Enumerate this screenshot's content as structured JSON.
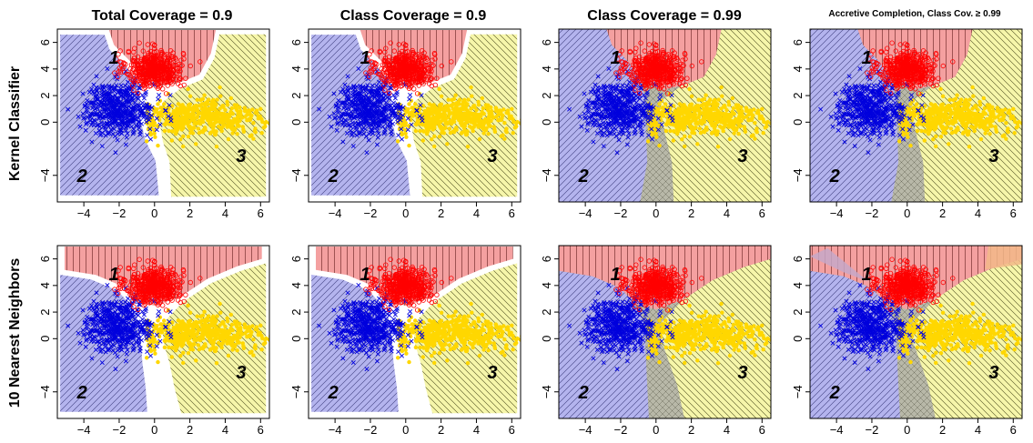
{
  "figure": {
    "column_titles": [
      "Total Coverage = 0.9",
      "Class Coverage = 0.9",
      "Class Coverage = 0.99",
      "Accretive Completion, Class Cov. ≥ 0.99"
    ],
    "row_labels": [
      "Kernel Classifier",
      "10 Nearest Neighbors"
    ]
  },
  "chart_data": {
    "type": "scatter",
    "layout": "2 rows x 4 columns of panels",
    "xlim": [
      -5.5,
      6.5
    ],
    "ylim": [
      -6,
      7
    ],
    "x_ticks": [
      -4,
      -2,
      0,
      2,
      4,
      6
    ],
    "y_ticks": [
      -4,
      0,
      2,
      4,
      6
    ],
    "x_tick_labels": [
      "−4",
      "−2",
      "0",
      "2",
      "4",
      "6"
    ],
    "y_tick_labels": [
      "−4",
      "0",
      "2",
      "4",
      "6"
    ],
    "grid": false,
    "legend": "none",
    "region_labels": [
      "1",
      "2",
      "3"
    ],
    "series": [
      {
        "label": "1",
        "marker": "open circle",
        "color": "#ff0000",
        "center": [
          0,
          4
        ],
        "x_spread": 0.8,
        "y_spread": 0.7,
        "n": 500
      },
      {
        "label": "2",
        "marker": "x",
        "color": "#0000dd",
        "center": [
          -2,
          1
        ],
        "x_spread": 1.0,
        "y_spread": 1.0,
        "n": 500
      },
      {
        "label": "3",
        "marker": "filled dot",
        "color": "#ffd700",
        "center": [
          2.5,
          0.3
        ],
        "x_spread": 1.8,
        "y_spread": 0.7,
        "n": 500
      }
    ],
    "region_colors": {
      "class1": "#f4a0a0",
      "class2": "#b4b4ee",
      "class3": "#f6f6aa",
      "ambiguous": "#b8b8a8",
      "ambiguous_1_2": "#c6a8c8",
      "ambiguous_1_3": "#f2b888"
    }
  }
}
